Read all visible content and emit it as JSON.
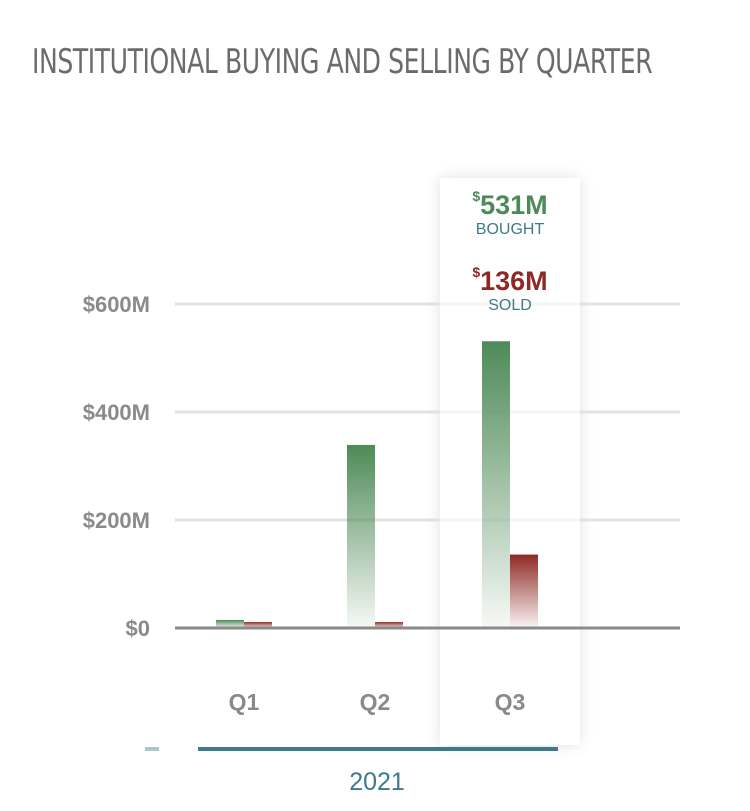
{
  "colors": {
    "bought": "#4e8a57",
    "sold": "#8e2a25",
    "accent": "#3f7a8c",
    "axis": "#888888"
  },
  "chart_data": {
    "type": "bar",
    "title": "INSTITUTIONAL BUYING AND SELLING BY QUARTER",
    "categories": [
      "Q1",
      "Q2",
      "Q3"
    ],
    "group_label": "2021",
    "series": [
      {
        "name": "BOUGHT",
        "values": [
          15,
          339,
          531
        ]
      },
      {
        "name": "SOLD",
        "values": [
          11,
          11,
          136
        ]
      }
    ],
    "yticks": [
      {
        "value": 0,
        "label": "$0"
      },
      {
        "value": 200,
        "label": "$200M"
      },
      {
        "value": 400,
        "label": "$400M"
      },
      {
        "value": 600,
        "label": "$600M"
      }
    ],
    "ylim": [
      0,
      600
    ],
    "ylabel": "",
    "xlabel": "",
    "grid": true,
    "highlighted": {
      "category": "Q3",
      "bought": {
        "currency": "$",
        "value": "531M",
        "label": "BOUGHT"
      },
      "sold": {
        "currency": "$",
        "value": "136M",
        "label": "SOLD"
      }
    }
  }
}
